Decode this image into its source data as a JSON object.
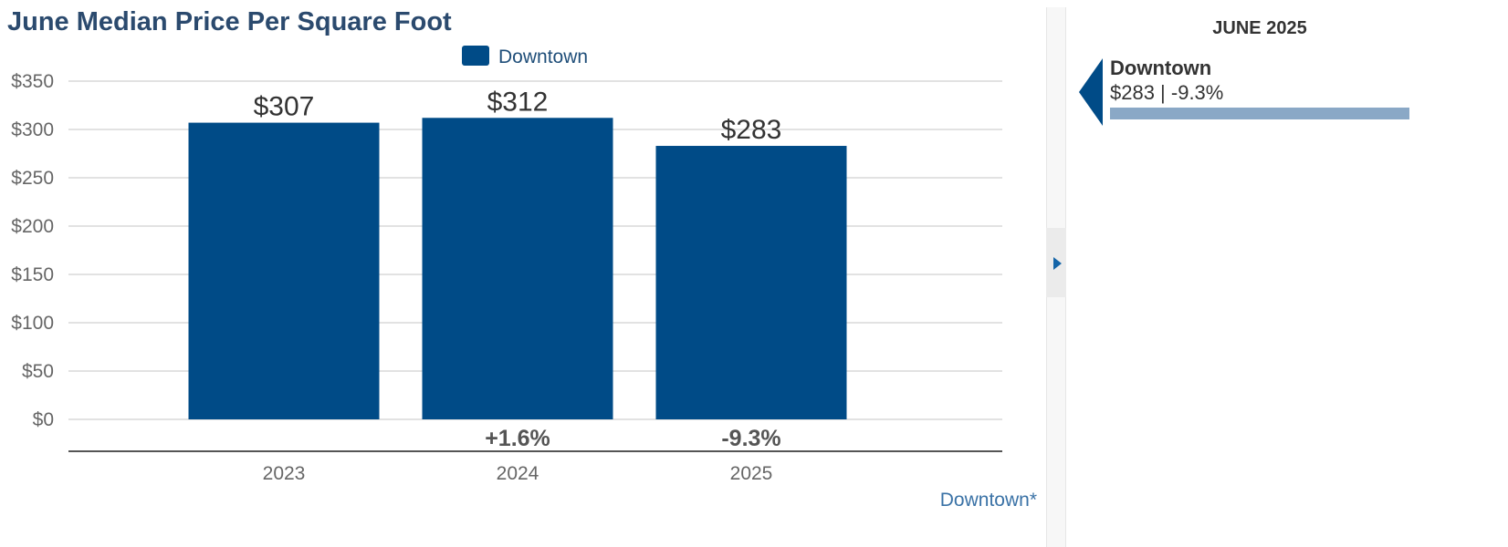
{
  "chart_data": {
    "type": "bar",
    "title": "June Median Price Per Square Foot",
    "xlabel": "",
    "ylabel": "",
    "categories": [
      "2023",
      "2024",
      "2025"
    ],
    "series": [
      {
        "name": "Downtown",
        "values": [
          307,
          312,
          283
        ],
        "color": "#004b87",
        "value_labels": [
          "$307",
          "$312",
          "$283"
        ],
        "change_labels": [
          "",
          "+1.6%",
          "-9.3%"
        ]
      }
    ],
    "ylim": [
      0,
      350
    ],
    "yticks": [
      {
        "value": 0,
        "label": "$0"
      },
      {
        "value": 50,
        "label": "$50"
      },
      {
        "value": 100,
        "label": "$100"
      },
      {
        "value": 150,
        "label": "$150"
      },
      {
        "value": 200,
        "label": "$200"
      },
      {
        "value": 250,
        "label": "$250"
      },
      {
        "value": 300,
        "label": "$300"
      },
      {
        "value": 350,
        "label": "$350"
      }
    ],
    "grid": true,
    "legend_position": "top-center",
    "footnote": "Downtown*"
  },
  "side_panel": {
    "period": "JUNE 2025",
    "entries": [
      {
        "name": "Downtown",
        "summary": "$283 | -9.3%",
        "color": "#004b87",
        "bar_color": "#8aa8c6"
      }
    ]
  },
  "colors": {
    "bar": "#004b87",
    "title": "#2b4a6e",
    "footnote": "#3a72a6",
    "grid": "#d9d9d9",
    "axis": "#666666"
  }
}
